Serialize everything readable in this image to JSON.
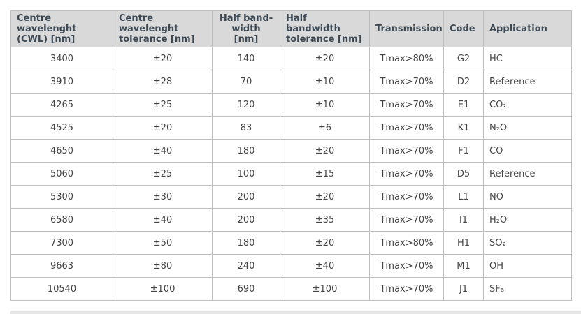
{
  "table": {
    "headers": [
      [
        "Centre wavelenght",
        "(CWL) [nm]"
      ],
      [
        "Centre wavelenght",
        "tolerance [nm]"
      ],
      [
        "Half band-",
        "width [nm]"
      ],
      [
        "Half bandwidth",
        "tolerance [nm]"
      ],
      [
        "Transmission",
        ""
      ],
      [
        "Code",
        ""
      ],
      [
        "Application",
        ""
      ]
    ],
    "rows": [
      [
        "3400",
        "±20",
        "140",
        "±20",
        "Tmax>80%",
        "G2",
        "HC"
      ],
      [
        "3910",
        "±28",
        "70",
        "±10",
        "Tmax>70%",
        "D2",
        "Reference"
      ],
      [
        "4265",
        "±25",
        "120",
        "±10",
        "Tmax>70%",
        "E1",
        "CO₂"
      ],
      [
        "4525",
        "±20",
        "83",
        "±6",
        "Tmax>70%",
        "K1",
        "N₂O"
      ],
      [
        "4650",
        "±40",
        "180",
        "±20",
        "Tmax>70%",
        "F1",
        "CO"
      ],
      [
        "5060",
        "±25",
        "100",
        "±15",
        "Tmax>70%",
        "D5",
        "Reference"
      ],
      [
        "5300",
        "±30",
        "200",
        "±20",
        "Tmax>70%",
        "L1",
        "NO"
      ],
      [
        "6580",
        "±40",
        "200",
        "±35",
        "Tmax>70%",
        "I1",
        "H₂O"
      ],
      [
        "7300",
        "±50",
        "180",
        "±20",
        "Tmax>80%",
        "H1",
        "SO₂"
      ],
      [
        "9663",
        "±80",
        "240",
        "±40",
        "Tmax>70%",
        "M1",
        "OH"
      ],
      [
        "10540",
        "±100",
        "690",
        "±100",
        "Tmax>70%",
        "J1",
        "SF₆"
      ]
    ]
  }
}
